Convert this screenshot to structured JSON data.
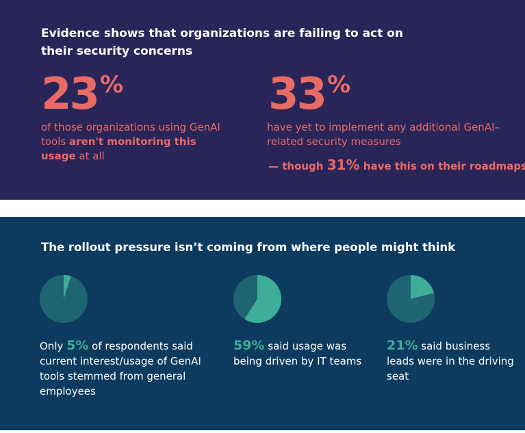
{
  "top": {
    "headline": "Evidence shows that organizations are failing to act on their security concerns",
    "stat1": {
      "number": "23",
      "percent_sign": "%",
      "text_before": "of those organizations using GenAI tools ",
      "text_bold": "aren't monitoring this usage",
      "text_after": " at all"
    },
    "stat2": {
      "number": "33",
      "percent_sign": "%",
      "text": "have yet to implement any additional GenAI–related security measures"
    },
    "roadmap": {
      "prefix": "— though ",
      "value": "31%",
      "suffix": " have this on their roadmaps"
    }
  },
  "bottom": {
    "headline": "The rollout pressure isn’t coming from where people might think",
    "colors": {
      "slice": "#3fae99",
      "rest": "#1f6571"
    },
    "items": [
      {
        "value": 5,
        "before": "Only ",
        "pct_label": "5%",
        "after": " of respondents said current interest/usage of GenAI tools stemmed from general employees"
      },
      {
        "value": 59,
        "before": "",
        "pct_label": "59%",
        "after": " said usage was being driven by IT teams"
      },
      {
        "value": 21,
        "before": "",
        "pct_label": "21%",
        "after": " said business leads were in the driving seat"
      }
    ]
  }
}
